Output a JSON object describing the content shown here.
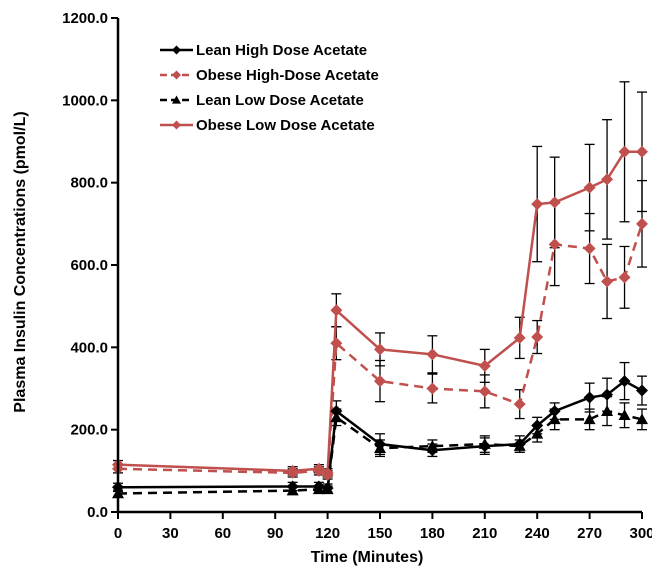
{
  "chart_data": {
    "type": "line",
    "xlabel": "Time (Minutes)",
    "ylabel": "Plasma Insulin Concentrations (pmol/L)",
    "xlim": [
      0,
      300
    ],
    "ylim": [
      0,
      1200
    ],
    "xticks": [
      0,
      30,
      60,
      90,
      120,
      150,
      180,
      210,
      240,
      270,
      300
    ],
    "xtick_labels": [
      "0",
      "30",
      "60",
      "90",
      "120",
      "150",
      "180",
      "210",
      "240",
      "270",
      "300"
    ],
    "yticks": [
      0,
      200,
      400,
      600,
      800,
      1000,
      1200
    ],
    "ytick_labels": [
      "0.0",
      "200.0",
      "400.0",
      "600.0",
      "800.0",
      "1000.0",
      "1200.0"
    ],
    "grid": false,
    "legend_position": "top-left",
    "series": [
      {
        "name": "Lean High Dose Acetate",
        "color": "#000000",
        "dash": "solid",
        "marker": "diamond",
        "x": [
          0,
          100,
          115,
          120,
          125,
          150,
          180,
          210,
          230,
          240,
          250,
          270,
          280,
          290,
          300
        ],
        "y": [
          60,
          62,
          62,
          58,
          245,
          165,
          150,
          160,
          165,
          210,
          245,
          278,
          285,
          318,
          295
        ],
        "err": [
          10,
          10,
          10,
          10,
          25,
          25,
          15,
          20,
          20,
          20,
          20,
          35,
          40,
          45,
          35
        ]
      },
      {
        "name": "Obese High-Dose Acetate",
        "color": "#c0504d",
        "dash": "dashed",
        "marker": "diamond",
        "x": [
          0,
          100,
          115,
          120,
          125,
          150,
          180,
          210,
          230,
          240,
          250,
          270,
          280,
          290,
          300
        ],
        "y": [
          105,
          95,
          100,
          90,
          410,
          318,
          300,
          293,
          262,
          425,
          650,
          640,
          560,
          570,
          700
        ],
        "err": [
          10,
          10,
          10,
          10,
          40,
          50,
          35,
          40,
          35,
          40,
          100,
          85,
          90,
          75,
          105
        ]
      },
      {
        "name": "Lean Low Dose Acetate",
        "color": "#000000",
        "dash": "dashed",
        "marker": "triangle",
        "x": [
          0,
          100,
          115,
          120,
          125,
          150,
          180,
          210,
          230,
          240,
          250,
          270,
          280,
          290,
          300
        ],
        "y": [
          45,
          52,
          55,
          55,
          230,
          155,
          160,
          165,
          160,
          190,
          225,
          225,
          245,
          235,
          225
        ],
        "err": [
          8,
          8,
          8,
          8,
          20,
          20,
          15,
          20,
          15,
          20,
          25,
          25,
          35,
          30,
          25
        ]
      },
      {
        "name": "Obese Low Dose Acetate",
        "color": "#c0504d",
        "dash": "solid",
        "marker": "diamond",
        "x": [
          0,
          100,
          115,
          120,
          125,
          150,
          180,
          210,
          230,
          240,
          250,
          270,
          280,
          290,
          300
        ],
        "y": [
          115,
          100,
          105,
          95,
          490,
          395,
          383,
          355,
          423,
          748,
          752,
          788,
          808,
          875,
          875
        ],
        "err": [
          10,
          10,
          10,
          10,
          40,
          40,
          45,
          40,
          50,
          140,
          110,
          105,
          145,
          170,
          145
        ]
      }
    ]
  }
}
